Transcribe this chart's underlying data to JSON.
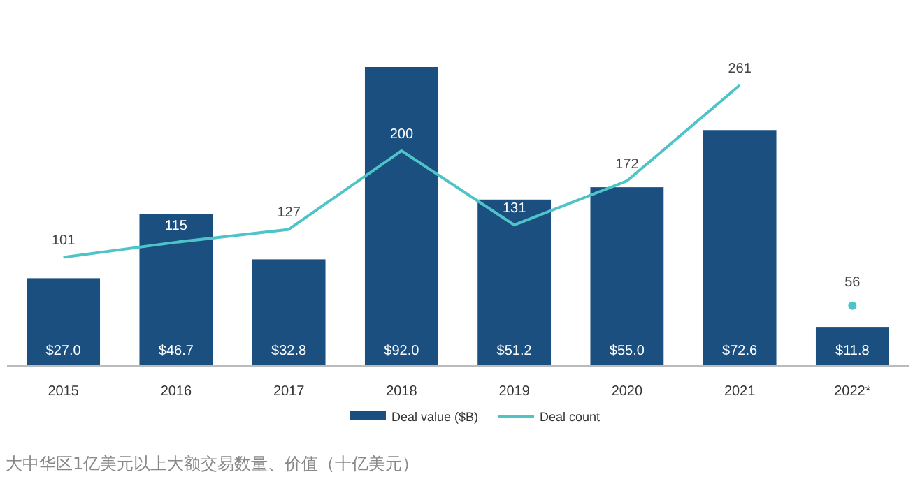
{
  "chart_data": {
    "type": "bar",
    "categories": [
      "2015",
      "2016",
      "2017",
      "2018",
      "2019",
      "2020",
      "2021",
      "2022*"
    ],
    "series": [
      {
        "name": "Deal value ($B)",
        "axis": "y",
        "color": "#1b4f80",
        "values": [
          27.0,
          46.7,
          32.8,
          92.0,
          51.2,
          55.0,
          72.6,
          11.8
        ],
        "value_labels": [
          "$27.0",
          "$46.7",
          "$32.8",
          "$92.0",
          "$51.2",
          "$55.0",
          "$72.6",
          "$11.8"
        ]
      },
      {
        "name": "Deal count",
        "type": "line",
        "axis": "y2",
        "color": "#4ec4c9",
        "values": [
          101,
          115,
          127,
          200,
          131,
          172,
          261,
          null
        ],
        "value_labels": [
          "101",
          "115",
          "127",
          "200",
          "131",
          "172",
          "261",
          null
        ]
      },
      {
        "type": "scatter",
        "axis": "y2",
        "color": "#4ec4c9",
        "marker": "circle",
        "values": [
          null,
          null,
          null,
          null,
          null,
          null,
          null,
          56
        ],
        "value_labels": [
          null,
          null,
          null,
          null,
          null,
          null,
          null,
          "56"
        ]
      }
    ],
    "legend": "bottom",
    "annotations": [
      "大中华区1亿美元以上大额交易数量、价值（十亿美元）"
    ]
  }
}
